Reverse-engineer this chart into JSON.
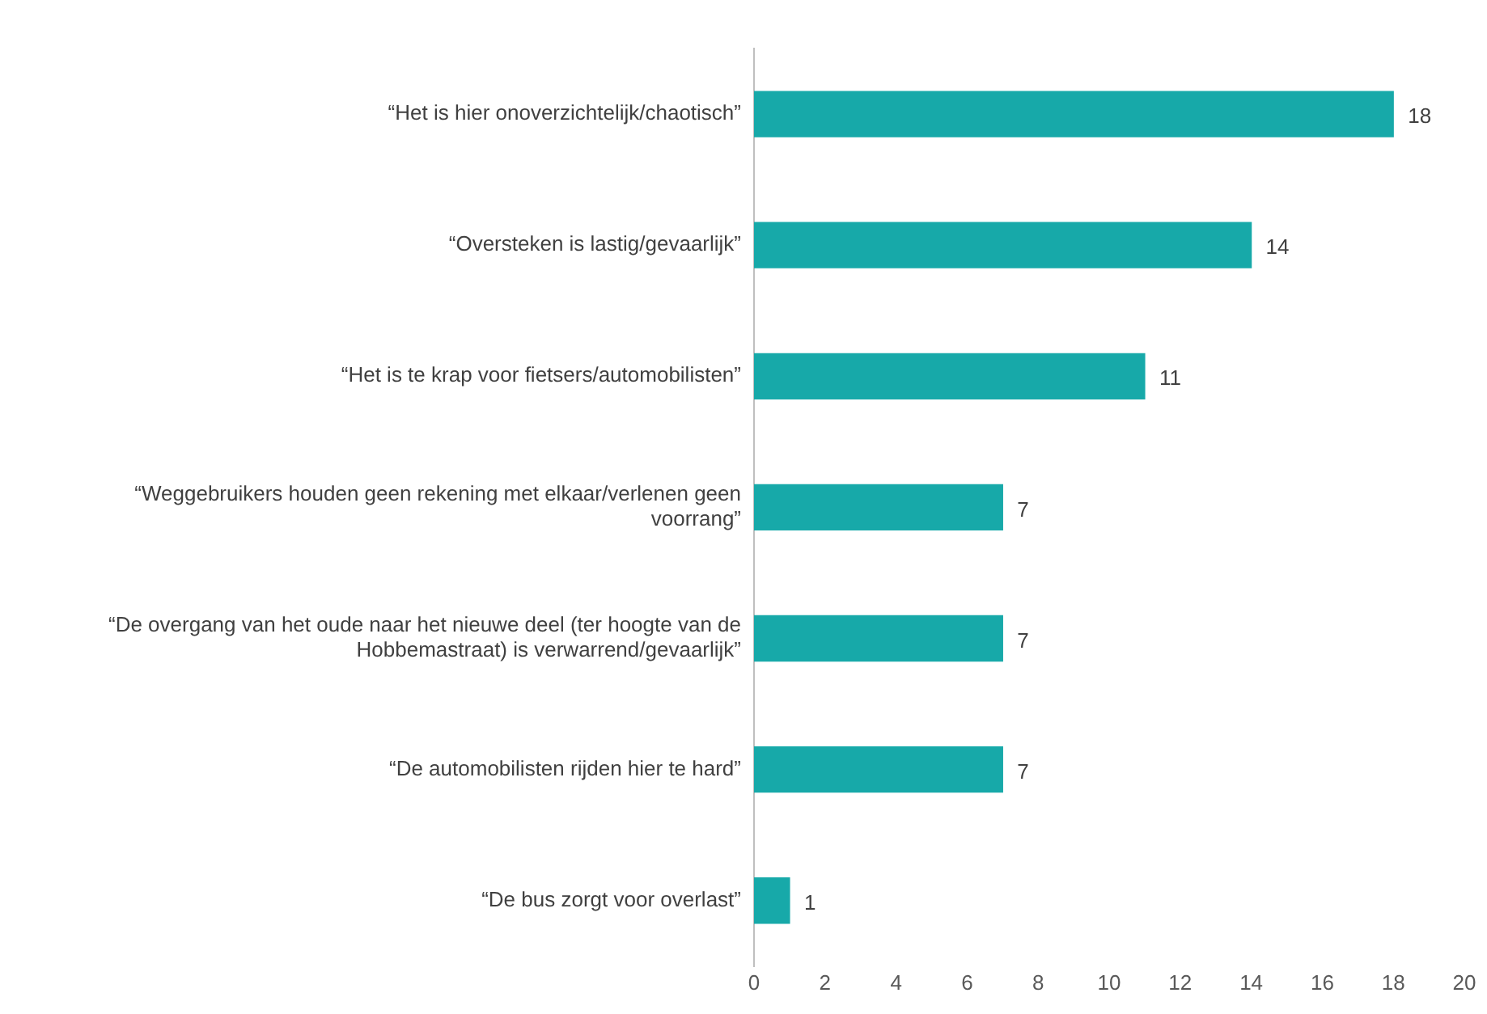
{
  "chart_data": {
    "type": "bar",
    "orientation": "horizontal",
    "categories": [
      "“Het is hier onoverzichtelijk/chaotisch”",
      "“Oversteken is lastig/gevaarlijk”",
      "“Het is te krap voor fietsers/automobilisten”",
      "“Weggebruikers houden geen rekening met elkaar/verlenen geen voorrang”",
      "“De overgang van het oude naar het nieuwe deel (ter hoogte van de Hobbemastraat) is verwarrend/gevaarlijk”",
      "“De automobilisten rijden hier te hard”",
      "“De bus zorgt voor overlast”"
    ],
    "values": [
      18,
      14,
      11,
      7,
      7,
      7,
      1
    ],
    "color": "#17a9a9",
    "xlim": [
      0,
      20
    ],
    "xticks": [
      0,
      2,
      4,
      6,
      8,
      10,
      12,
      14,
      16,
      18,
      20
    ],
    "data_labels": true,
    "grid": false,
    "legend": false
  }
}
